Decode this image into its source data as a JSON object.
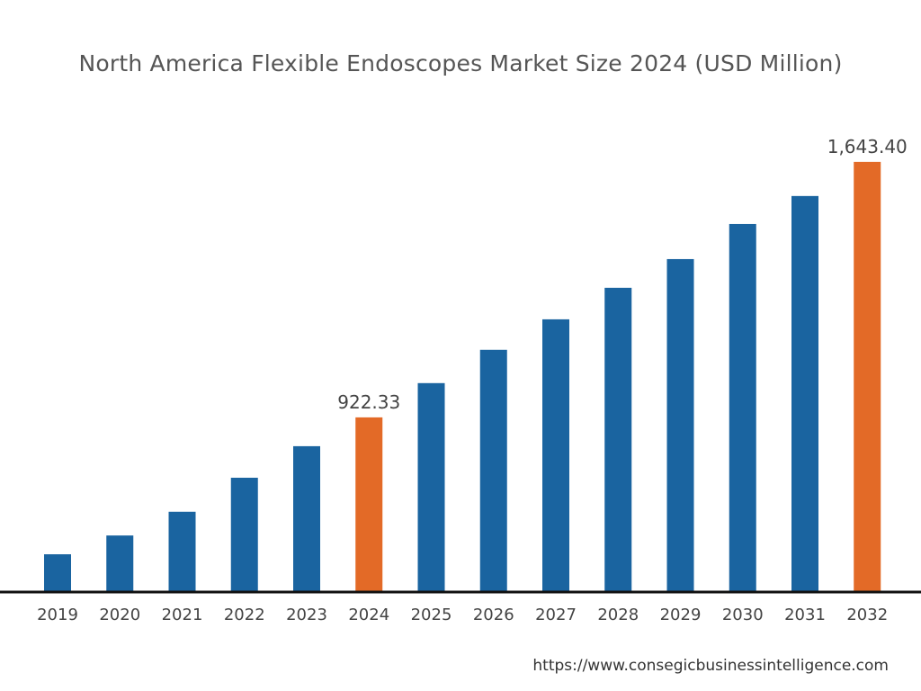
{
  "chart_data": {
    "type": "bar",
    "title": "North America Flexible Endoscopes Market Size 2024 (USD Million)",
    "xlabel": "",
    "ylabel": "",
    "grid": false,
    "categories": [
      "2019",
      "2020",
      "2021",
      "2022",
      "2023",
      "2024",
      "2025",
      "2026",
      "2027",
      "2028",
      "2029",
      "2030",
      "2031",
      "2032"
    ],
    "values": [
      536,
      589,
      656,
      752,
      841,
      922.33,
      1019,
      1113,
      1199,
      1288,
      1369,
      1468,
      1547,
      1643.4
    ],
    "data_labels": [
      "",
      "",
      "",
      "",
      "",
      "922.33",
      "",
      "",
      "",
      "",
      "",
      "",
      "",
      "1,643.40"
    ],
    "highlight": [
      "2024",
      "2032"
    ],
    "colors": {
      "default": "#1a64a0",
      "highlight": "#e36a27",
      "axis": "#111111"
    }
  },
  "source": "https://www.consegicbusinessintelligence.com"
}
